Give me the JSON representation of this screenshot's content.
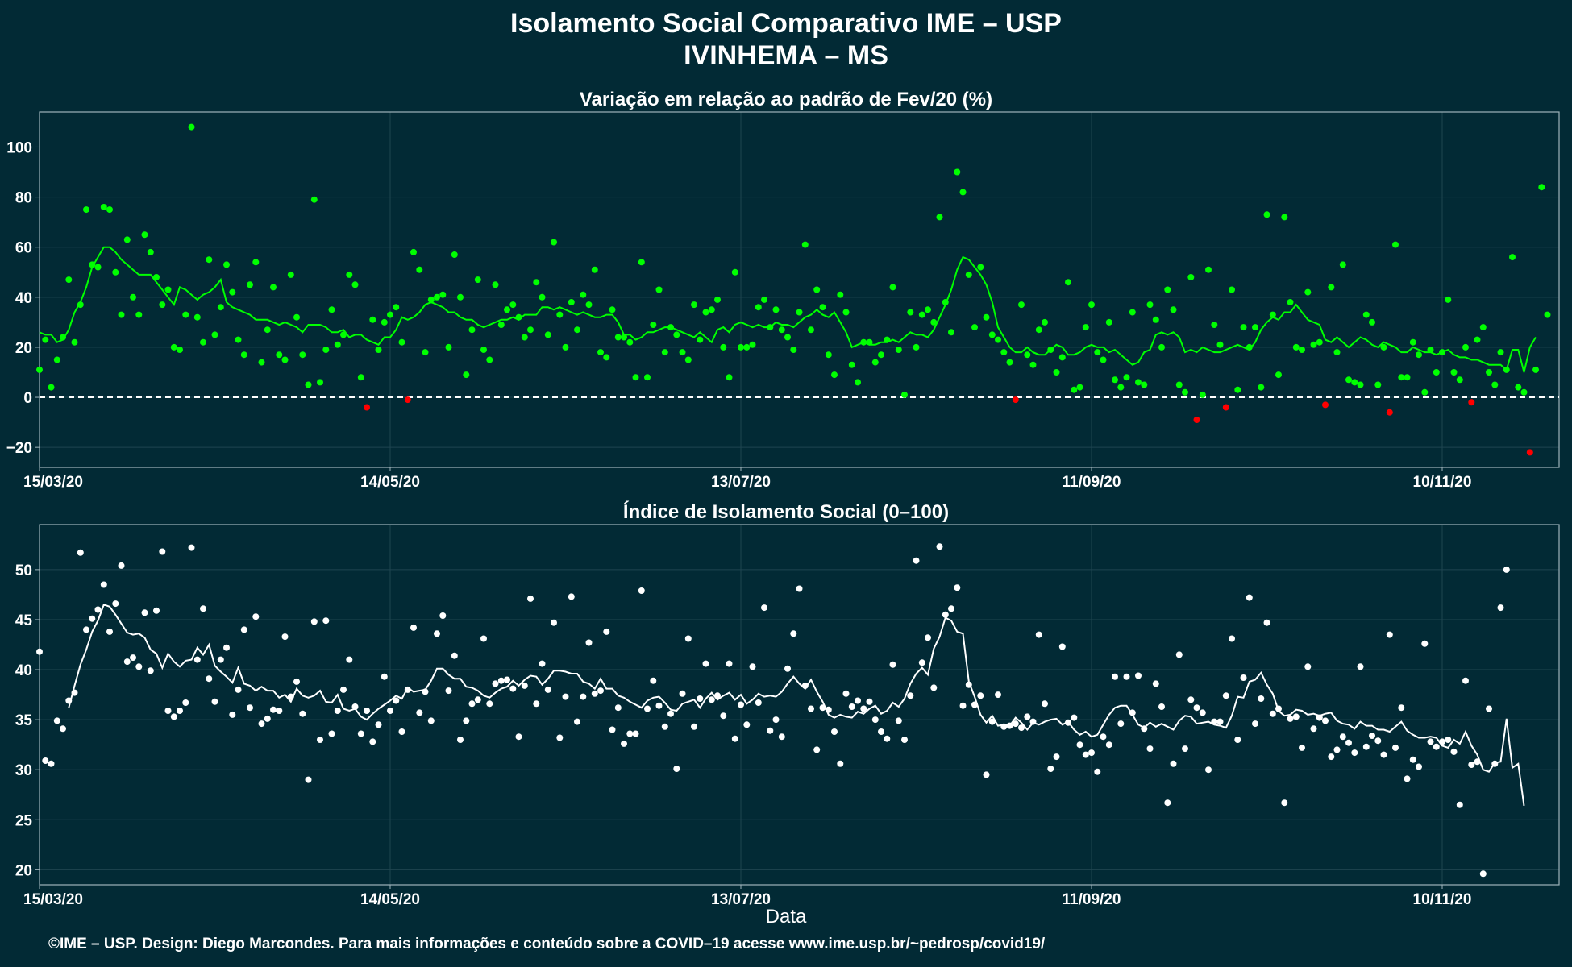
{
  "title": "Isolamento Social Comparativo IME – USP",
  "subtitle": "IVINHEMA – MS",
  "xlabel": "Data",
  "caption": "©IME – USP. Design: Diego Marcondes. Para mais informações e conteúdo sobre a COVID–19 acesse www.ime.usp.br/~pedrosp/covid19/",
  "colors": {
    "background": "#022a35",
    "gridline": "#1f4550",
    "positive_points": "#00ff00",
    "negative_points": "#ff0000",
    "moving_average_top": "#00ff00",
    "index_series": "#ffffff",
    "reference_line": "#ffffff"
  },
  "chart_data": [
    {
      "type": "scatter",
      "title": "Variação em relação ao padrão de Fev/20 (%)",
      "xlabel": "",
      "ylabel": "",
      "x_range": [
        "15/03/20",
        "30/11/20"
      ],
      "x_ticks": [
        "15/03/20",
        "14/05/20",
        "13/07/20",
        "11/09/20",
        "10/11/20"
      ],
      "ylim": [
        -28,
        114
      ],
      "y_ticks": [
        -20,
        0,
        20,
        40,
        60,
        80,
        100
      ],
      "reference_line_y": 0,
      "grid": true,
      "series": [
        {
          "values": [
            11,
            23,
            4,
            15,
            24,
            47,
            22,
            37,
            75,
            53,
            52,
            76,
            75,
            50,
            33,
            63,
            40,
            33,
            65,
            58,
            48,
            37,
            43,
            20,
            19,
            33,
            108,
            32,
            22,
            55,
            25,
            36,
            53,
            42,
            23,
            17,
            45,
            54,
            14,
            27,
            44,
            17,
            15,
            49,
            32,
            17,
            5,
            79,
            6,
            19,
            35,
            21,
            25,
            49,
            45,
            8,
            -4,
            31,
            19,
            30,
            33,
            36,
            22,
            -1,
            58,
            51,
            18,
            39,
            40,
            41,
            20,
            57,
            40,
            9,
            27,
            47,
            19,
            15,
            45,
            29,
            35,
            37,
            32,
            24,
            27,
            46,
            40,
            25,
            62,
            33,
            20,
            38,
            27,
            41,
            37,
            51,
            18,
            16,
            35,
            24,
            24,
            22,
            8,
            54,
            8,
            29,
            43,
            18,
            28,
            25,
            18,
            15,
            37,
            23,
            34,
            35,
            39,
            20,
            8,
            50,
            20,
            20,
            21,
            36,
            39,
            28,
            35,
            27,
            24,
            19,
            34,
            61,
            27,
            43,
            36,
            17,
            9,
            41,
            34,
            13,
            6,
            22,
            22,
            14,
            17,
            23,
            44,
            19,
            1,
            34,
            20,
            33,
            35,
            30,
            72,
            38,
            26,
            90,
            82,
            49,
            28,
            52,
            32,
            25,
            23,
            18,
            14,
            -1,
            37,
            17,
            13,
            27,
            30,
            19,
            10,
            16,
            46,
            3,
            4,
            28,
            37,
            18,
            15,
            30,
            7,
            4,
            8,
            34,
            6,
            5,
            37,
            31,
            20,
            43,
            35,
            5,
            2,
            48,
            -9,
            1,
            51,
            29,
            21,
            -4,
            43,
            3,
            28,
            20,
            28,
            4,
            73,
            33,
            9,
            72,
            38,
            20,
            19,
            42,
            21,
            22,
            -3,
            44,
            18,
            53,
            7,
            6,
            5,
            33,
            30,
            5,
            20,
            -6,
            61,
            8,
            8,
            22,
            17,
            2,
            19,
            10,
            18,
            39,
            10,
            7,
            20,
            -2,
            23,
            28,
            10,
            5,
            18,
            11,
            56,
            4,
            2,
            -22,
            11,
            84,
            33
          ]
        }
      ],
      "moving_average": [
        26,
        25,
        25,
        22,
        23,
        27,
        34,
        38,
        44,
        52,
        56,
        60,
        60,
        58,
        55,
        53,
        51,
        49,
        49,
        49,
        46,
        43,
        40,
        37,
        44,
        43,
        41,
        39,
        41,
        42,
        44,
        47,
        38,
        36,
        35,
        34,
        33,
        31,
        31,
        31,
        30,
        29,
        30,
        29,
        28,
        26,
        29,
        29,
        29,
        28,
        26,
        26,
        27,
        24,
        25,
        25,
        23,
        22,
        21,
        24,
        24,
        27,
        32,
        31,
        32,
        34,
        37,
        38,
        37,
        36,
        34,
        34,
        32,
        31,
        31,
        29,
        28,
        29,
        30,
        31,
        31,
        32,
        31,
        33,
        33,
        33,
        36,
        36,
        35,
        36,
        35,
        34,
        33,
        34,
        33,
        32,
        32,
        33,
        33,
        30,
        25,
        25,
        23,
        24,
        26,
        26,
        27,
        28,
        28,
        27,
        26,
        25,
        24,
        26,
        24,
        22,
        27,
        28,
        26,
        29,
        30,
        29,
        28,
        29,
        28,
        28,
        30,
        29,
        29,
        28,
        30,
        32,
        33,
        35,
        33,
        32,
        34,
        30,
        26,
        20,
        21,
        22,
        21,
        21,
        22,
        22,
        23,
        22,
        24,
        26,
        25,
        25,
        24,
        27,
        32,
        37,
        43,
        51,
        56,
        55,
        52,
        49,
        45,
        38,
        28,
        24,
        20,
        18,
        18,
        20,
        18,
        17,
        17,
        19,
        21,
        20,
        17,
        17,
        18,
        20,
        21,
        20,
        20,
        18,
        19,
        17,
        15,
        13,
        14,
        18,
        19,
        25,
        26,
        25,
        26,
        24,
        18,
        19,
        18,
        20,
        19,
        18,
        18,
        19,
        20,
        21,
        20,
        19,
        22,
        27,
        30,
        32,
        31,
        34,
        34,
        37,
        34,
        31,
        30,
        29,
        23,
        22,
        24,
        22,
        20,
        22,
        24,
        23,
        21,
        20,
        22,
        21,
        20,
        18,
        18,
        20,
        19,
        18,
        18,
        17,
        18,
        19,
        17,
        16,
        16,
        15,
        15,
        14,
        13,
        13,
        13,
        11,
        19,
        19,
        10,
        20,
        24
      ]
    },
    {
      "type": "scatter",
      "title": "Índice de Isolamento Social (0–100)",
      "xlabel": "Data",
      "ylabel": "",
      "x_range": [
        "15/03/20",
        "30/11/20"
      ],
      "x_ticks": [
        "15/03/20",
        "14/05/20",
        "13/07/20",
        "11/09/20",
        "10/11/20"
      ],
      "ylim": [
        18.5,
        54.5
      ],
      "y_ticks": [
        20,
        25,
        30,
        35,
        40,
        45,
        50
      ],
      "grid": true,
      "series": [
        {
          "values": [
            41.8,
            30.9,
            30.6,
            34.9,
            34.1,
            36.9,
            37.7,
            51.7,
            44.0,
            45.1,
            46.0,
            48.5,
            43.8,
            46.6,
            50.4,
            40.8,
            41.2,
            40.3,
            45.7,
            39.9,
            45.9,
            51.8,
            35.9,
            35.3,
            35.9,
            36.7,
            52.2,
            41.0,
            46.1,
            39.1,
            36.8,
            41.0,
            42.2,
            35.5,
            38.0,
            44.0,
            36.2,
            45.3,
            34.6,
            35.1,
            36.0,
            35.9,
            43.3,
            37.3,
            38.8,
            35.6,
            29.0,
            44.8,
            33.0,
            44.9,
            33.6,
            35.9,
            38.0,
            41.0,
            36.3,
            33.6,
            35.9,
            32.8,
            34.5,
            39.3,
            35.9,
            36.9,
            33.8,
            38.0,
            44.2,
            35.7,
            37.8,
            34.9,
            43.6,
            45.4,
            37.9,
            41.4,
            33.0,
            34.9,
            36.6,
            37.0,
            43.1,
            36.6,
            38.6,
            38.9,
            39.0,
            38.1,
            33.3,
            38.4,
            47.1,
            36.6,
            40.6,
            38.0,
            44.7,
            33.2,
            37.3,
            47.3,
            34.8,
            37.3,
            42.7,
            37.6,
            37.9,
            43.8,
            34.0,
            36.2,
            32.6,
            33.6,
            33.6,
            47.9,
            36.1,
            38.9,
            36.4,
            34.3,
            35.6,
            30.1,
            37.6,
            43.1,
            34.3,
            37.1,
            40.6,
            37.0,
            37.4,
            35.4,
            40.6,
            33.1,
            36.5,
            34.5,
            40.3,
            36.7,
            46.2,
            33.9,
            35.0,
            33.3,
            40.1,
            43.6,
            48.1,
            38.4,
            36.1,
            32.0,
            36.2,
            36.0,
            33.8,
            30.6,
            37.6,
            36.3,
            36.9,
            36.1,
            36.8,
            35.0,
            33.8,
            33.1,
            40.5,
            34.9,
            33.0,
            37.4,
            50.9,
            40.7,
            43.2,
            38.2,
            52.3,
            45.5,
            46.1,
            48.2,
            36.4,
            38.5,
            36.5,
            37.4,
            29.5,
            34.8,
            37.5,
            34.3,
            34.4,
            34.6,
            34.2,
            35.3,
            34.8,
            43.5,
            36.6,
            30.1,
            31.3,
            42.3,
            34.7,
            35.2,
            32.5,
            31.5,
            31.7,
            29.8,
            33.3,
            32.5,
            39.3,
            34.6,
            39.3,
            35.7,
            39.4,
            34.1,
            32.1,
            38.6,
            36.3,
            26.7,
            30.6,
            41.5,
            32.1,
            37.0,
            36.2,
            35.7,
            30.0,
            34.8,
            34.8,
            37.4,
            43.1,
            33.0,
            39.2,
            47.2,
            34.6,
            37.1,
            44.7,
            35.6,
            36.1,
            26.7,
            35.1,
            35.3,
            32.2,
            40.3,
            34.1,
            35.2,
            34.9,
            31.3,
            32.0,
            33.3,
            32.7,
            31.7,
            40.3,
            32.3,
            33.4,
            32.9,
            31.5,
            43.5,
            32.2,
            36.2,
            29.1,
            31.0,
            30.3,
            42.6,
            32.8,
            32.3,
            32.8,
            33.0,
            31.8,
            26.5,
            38.9,
            30.5,
            30.8,
            19.6,
            36.1,
            30.6,
            46.2,
            50.0
          ]
        }
      ],
      "moving_average": [
        null,
        null,
        null,
        null,
        null,
        36.2,
        38.4,
        40.5,
        42.0,
        43.8,
        44.9,
        46.5,
        46.3,
        45.5,
        44.6,
        43.7,
        43.5,
        43.6,
        43.2,
        42.0,
        41.6,
        40.2,
        41.6,
        40.8,
        40.3,
        40.9,
        41.0,
        42.2,
        41.5,
        42.5,
        40.4,
        39.8,
        39.3,
        38.7,
        40.2,
        38.6,
        38.4,
        37.9,
        38.3,
        37.9,
        37.9,
        37.2,
        37.5,
        36.8,
        38.1,
        37.4,
        37.2,
        37.4,
        37.9,
        36.8,
        36.7,
        37.5,
        36.1,
        35.9,
        36.1,
        35.3,
        35.0,
        35.6,
        36.1,
        36.5,
        36.9,
        37.4,
        37.1,
        38.2,
        37.8,
        37.9,
        38.0,
        38.9,
        40.1,
        40.1,
        39.5,
        39.1,
        39.1,
        38.3,
        38.2,
        37.9,
        37.4,
        37.2,
        37.7,
        38.1,
        38.3,
        38.9,
        38.4,
        39.0,
        39.4,
        39.3,
        38.5,
        39.1,
        39.9,
        39.9,
        39.8,
        39.6,
        39.6,
        38.8,
        38.6,
        38.1,
        39.1,
        38.1,
        38.1,
        37.4,
        37.2,
        36.8,
        36.5,
        36.2,
        36.9,
        37.2,
        37.3,
        36.7,
        36.0,
        35.9,
        36.6,
        36.8,
        37.0,
        36.2,
        37.1,
        37.7,
        37.0,
        37.4,
        37.7,
        37.0,
        37.5,
        36.6,
        37.0,
        37.6,
        37.3,
        37.4,
        37.3,
        37.8,
        38.6,
        39.3,
        38.6,
        38.1,
        39.0,
        37.8,
        36.8,
        35.5,
        35.2,
        35.5,
        35.3,
        35.2,
        35.8,
        35.6,
        36.1,
        36.4,
        35.6,
        35.9,
        36.7,
        36.3,
        37.1,
        38.6,
        39.6,
        40.2,
        39.5,
        42.1,
        43.3,
        45.2,
        44.9,
        43.8,
        43.6,
        38.8,
        37.3,
        35.5,
        34.7,
        35.4,
        34.4,
        34.5,
        34.4,
        35.2,
        34.7,
        34.0,
        34.7,
        34.5,
        34.8,
        35.0,
        35.1,
        34.5,
        34.8,
        34.0,
        33.5,
        33.8,
        33.3,
        33.5,
        34.5,
        35.5,
        36.2,
        36.4,
        36.4,
        35.5,
        34.5,
        34.2,
        34.7,
        34.3,
        34.6,
        34.3,
        34.0,
        34.9,
        35.4,
        35.3,
        34.6,
        34.7,
        34.8,
        34.5,
        34.4,
        34.2,
        35.4,
        37.3,
        37.2,
        38.8,
        39.0,
        39.7,
        38.5,
        37.6,
        35.9,
        35.4,
        35.5,
        36.0,
        35.9,
        35.5,
        35.6,
        35.4,
        35.6,
        35.7,
        34.9,
        34.6,
        34.5,
        34.1,
        34.8,
        34.4,
        34.4,
        34.0,
        34.0,
        33.8,
        34.3,
        34.8,
        33.9,
        33.5,
        33.2,
        33.2,
        33.3,
        33.2,
        32.4,
        32.2,
        33.0,
        32.6,
        33.8,
        32.4,
        31.5,
        30.0,
        29.8,
        30.7,
        30.8,
        35.1,
        30.2,
        30.6,
        26.4
      ]
    }
  ]
}
